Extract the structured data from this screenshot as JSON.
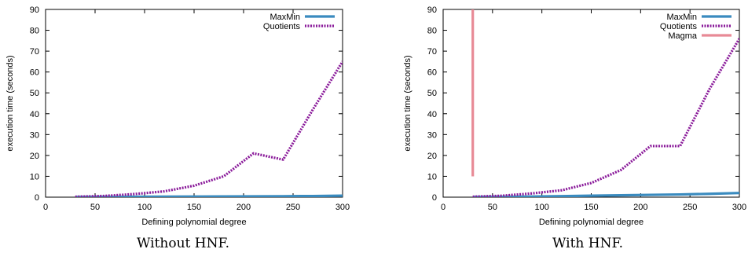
{
  "chart_data": [
    {
      "type": "line",
      "xlabel": "Defining polynomial degree",
      "ylabel": "execution time (seconds)",
      "xlim": [
        0,
        300
      ],
      "ylim": [
        0,
        90
      ],
      "xticks": [
        0,
        50,
        100,
        150,
        200,
        250,
        300
      ],
      "yticks": [
        0,
        10,
        20,
        30,
        40,
        50,
        60,
        70,
        80,
        90
      ],
      "grid": false,
      "legend_position": "top-right",
      "caption": "Without HNF.",
      "series": [
        {
          "name": "MaxMin",
          "color": "#3a8bbf",
          "style": "solid",
          "x": [
            30,
            60,
            90,
            120,
            150,
            180,
            210,
            240,
            270,
            300
          ],
          "y": [
            0.1,
            0.15,
            0.2,
            0.25,
            0.3,
            0.35,
            0.4,
            0.45,
            0.55,
            0.7
          ]
        },
        {
          "name": "Quotients",
          "color": "#8a1a9a",
          "style": "dotted",
          "x": [
            30,
            60,
            90,
            120,
            150,
            180,
            210,
            240,
            270,
            300
          ],
          "y": [
            0.2,
            0.6,
            1.5,
            2.8,
            5.5,
            10,
            21,
            18,
            42,
            65
          ]
        }
      ]
    },
    {
      "type": "line",
      "xlabel": "Defining polynomial degree",
      "ylabel": "execution time (seconds)",
      "xlim": [
        0,
        300
      ],
      "ylim": [
        0,
        90
      ],
      "xticks": [
        0,
        50,
        100,
        150,
        200,
        250,
        300
      ],
      "yticks": [
        0,
        10,
        20,
        30,
        40,
        50,
        60,
        70,
        80,
        90
      ],
      "grid": false,
      "legend_position": "top-right",
      "caption": "With HNF.",
      "series": [
        {
          "name": "MaxMin",
          "color": "#3a8bbf",
          "style": "solid",
          "x": [
            30,
            60,
            90,
            120,
            150,
            180,
            210,
            240,
            270,
            300
          ],
          "y": [
            0.1,
            0.2,
            0.3,
            0.5,
            0.7,
            0.9,
            1.1,
            1.3,
            1.6,
            2.0
          ]
        },
        {
          "name": "Quotients",
          "color": "#8a1a9a",
          "style": "dotted",
          "x": [
            30,
            60,
            90,
            120,
            150,
            180,
            210,
            240,
            270,
            300
          ],
          "y": [
            0.2,
            0.7,
            1.8,
            3.3,
            6.8,
            13,
            24.5,
            24.5,
            52,
            76
          ]
        },
        {
          "name": "Magma",
          "color": "#e88a96",
          "style": "solid",
          "x": [
            30,
            30
          ],
          "y": [
            10,
            90
          ]
        }
      ]
    }
  ]
}
